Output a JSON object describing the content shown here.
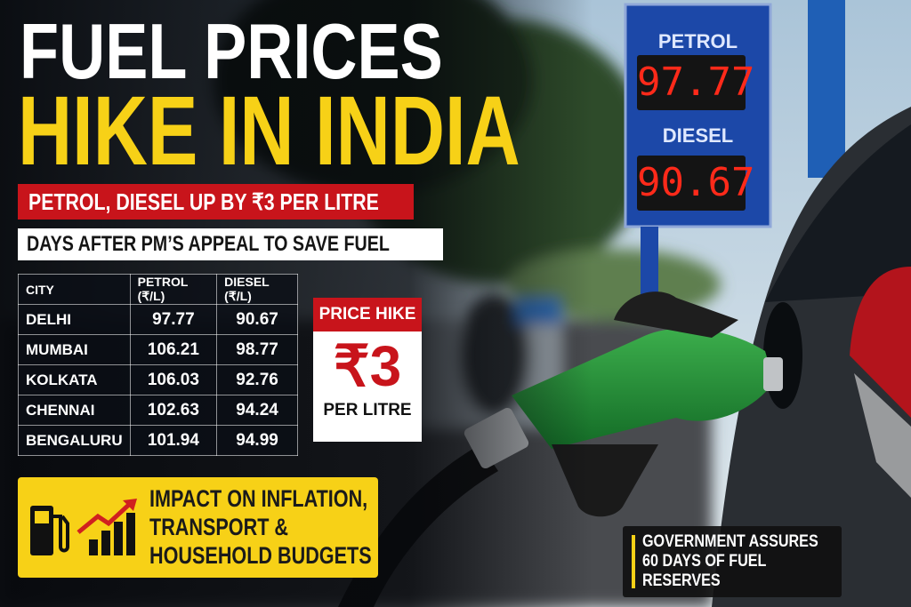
{
  "header": {
    "title_line1": "FUEL PRICES",
    "title_line2": "HIKE IN INDIA",
    "subtitle": "PETROL, DIESEL UP BY ₹3 PER LITRE",
    "tagline": "DAYS AFTER PM’S APPEAL TO SAVE FUEL"
  },
  "table": {
    "columns": [
      "CITY",
      "PETROL (₹/L)",
      "DIESEL (₹/L)"
    ],
    "rows": [
      [
        "DELHI",
        "97.77",
        "90.67"
      ],
      [
        "MUMBAI",
        "106.21",
        "98.77"
      ],
      [
        "KOLKATA",
        "106.03",
        "92.76"
      ],
      [
        "CHENNAI",
        "102.63",
        "94.24"
      ],
      [
        "BENGALURU",
        "101.94",
        "94.99"
      ]
    ]
  },
  "price_hike": {
    "label": "PRICE HIKE",
    "amount": "₹3",
    "unit": "PER LITRE"
  },
  "impact": {
    "lines": [
      "IMPACT ON INFLATION,",
      "TRANSPORT &",
      "HOUSEHOLD BUDGETS"
    ]
  },
  "sign": {
    "petrol_label": "PETROL",
    "petrol_price": "97.77",
    "diesel_label": "DIESEL",
    "diesel_price": "90.67"
  },
  "note": {
    "lines": [
      "GOVERNMENT ASSURES",
      "60 DAYS OF FUEL",
      "RESERVES"
    ]
  }
}
